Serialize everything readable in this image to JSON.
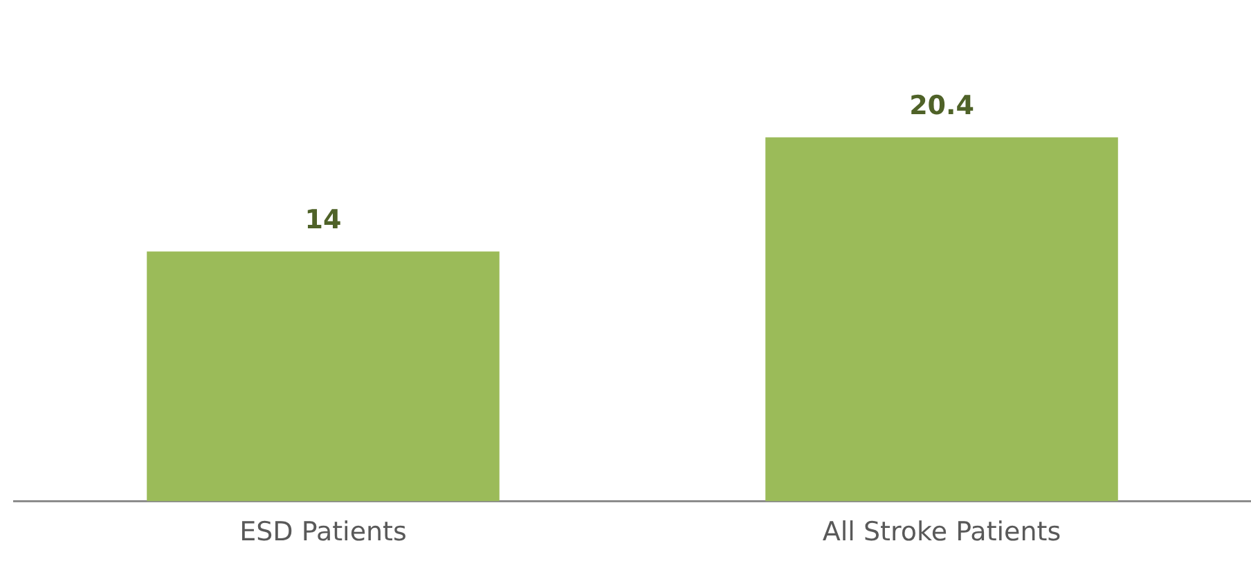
{
  "chart_data": {
    "type": "bar",
    "categories": [
      "ESD Patients",
      "All Stroke Patients"
    ],
    "values": [
      14,
      20.4
    ],
    "color": "#9bbb59",
    "data_labels": true,
    "grid": false,
    "legend": false
  }
}
